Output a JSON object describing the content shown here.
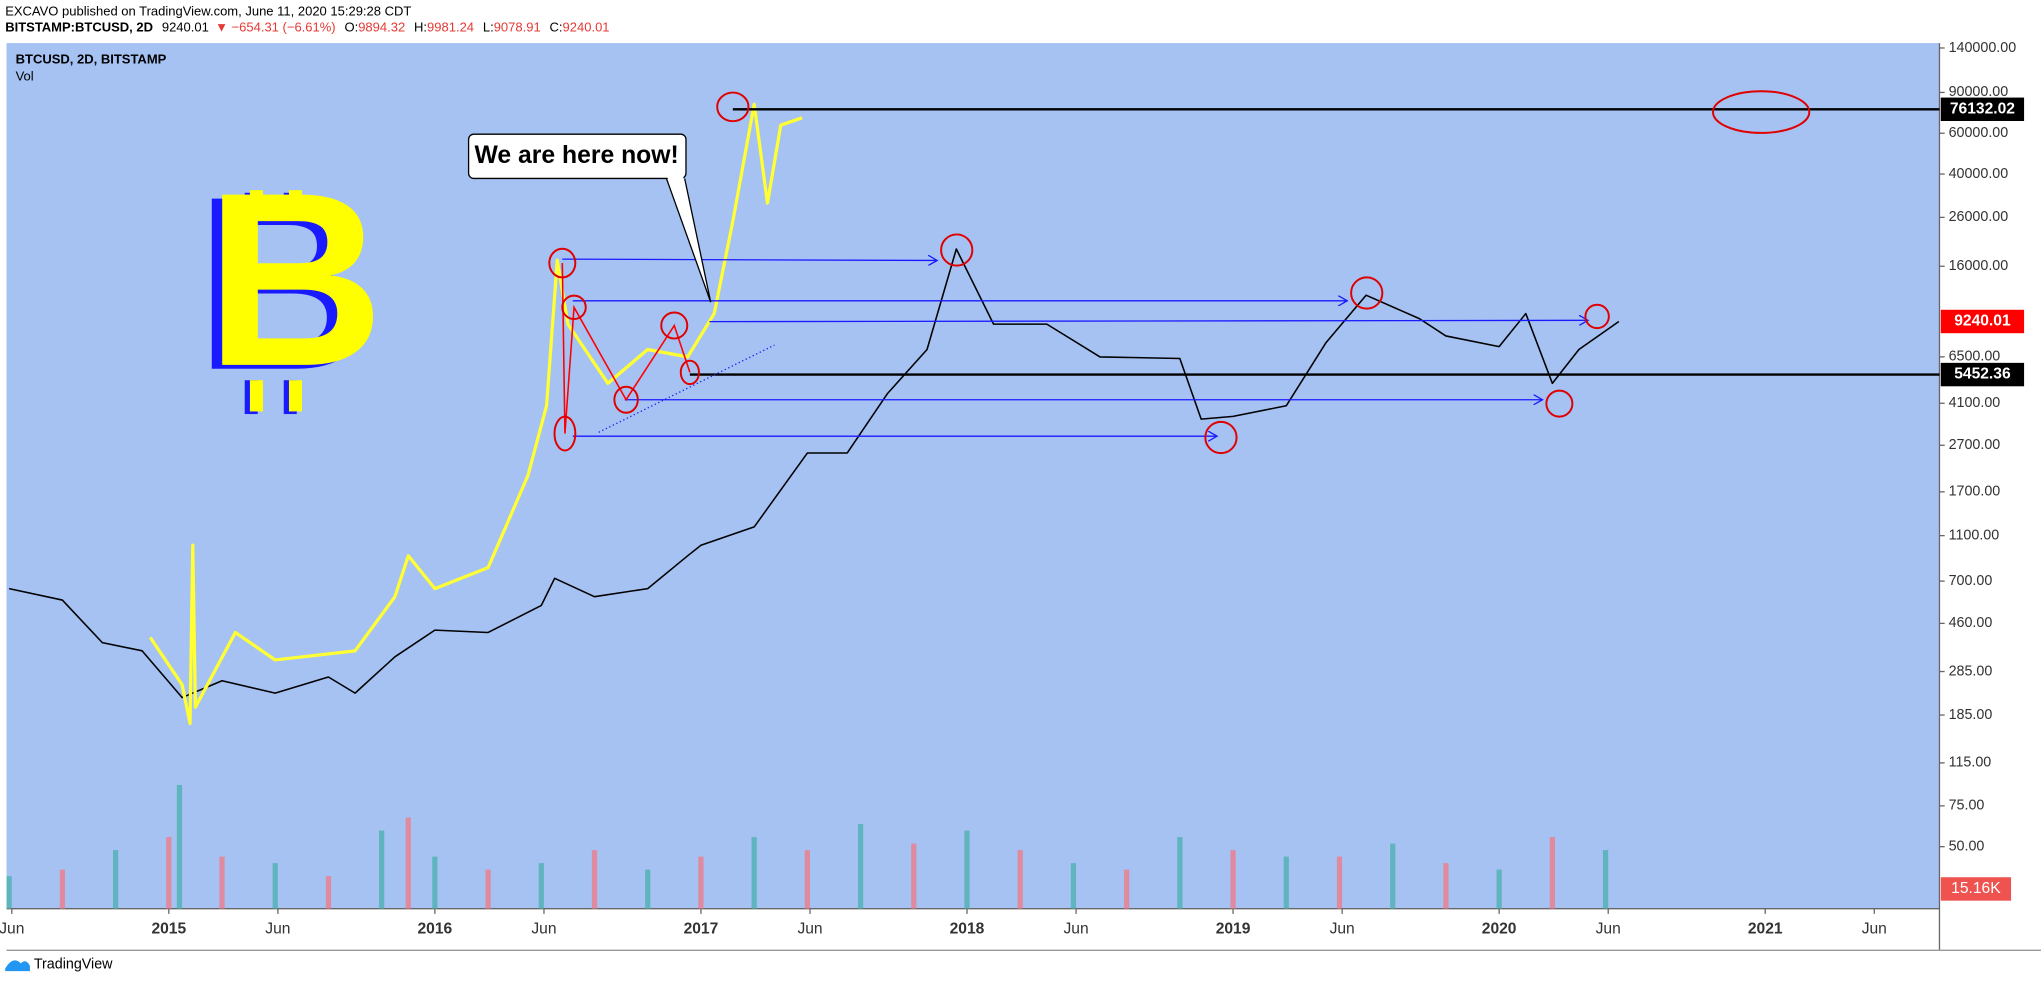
{
  "header": {
    "publisher": "EXCAVO published on TradingView.com, June 11, 2020 15:29:28 CDT",
    "symbol": "BITSTAMP:BTCUSD, 2D",
    "price": "9240.01",
    "change": "▼ −654.31 (−6.61%)",
    "ohlc": [
      {
        "key": "O:",
        "value": "9894.32"
      },
      {
        "key": "H:",
        "value": "9981.24"
      },
      {
        "key": "L:",
        "value": "9078.91"
      },
      {
        "key": "C:",
        "value": "9240.01"
      }
    ]
  },
  "chart_data": {
    "type": "line",
    "title": "BTCUSD, 2D, BITSTAMP",
    "subtitle": "Vol",
    "log_scale": true,
    "xlim": [
      2014.39,
      2021.655
    ],
    "xticks": [
      {
        "value": 2014.41,
        "label": "Jun"
      },
      2015,
      {
        "value": 2015.41,
        "label": "Jun"
      },
      2016,
      {
        "value": 2016.41,
        "label": "Jun"
      },
      2017,
      {
        "value": 2017.41,
        "label": "Jun"
      },
      2018,
      {
        "value": 2018.41,
        "label": "Jun"
      },
      2019,
      {
        "value": 2019.41,
        "label": "Jun"
      },
      2020,
      {
        "value": 2020.41,
        "label": "Jun"
      },
      2021,
      {
        "value": 2021.41,
        "label": "Jun"
      }
    ],
    "ylim": [
      27,
      147000
    ],
    "yticks": [
      {
        "value": 140000,
        "label": "140000.00"
      },
      {
        "value": 90000,
        "label": "90000.00"
      },
      {
        "value": 60000,
        "label": "60000.00"
      },
      {
        "value": 40000,
        "label": "40000.00"
      },
      {
        "value": 26000,
        "label": "26000.00"
      },
      {
        "value": 16000,
        "label": "16000.00"
      },
      {
        "value": 6500,
        "label": "6500.00"
      },
      {
        "value": 4100,
        "label": "4100.00"
      },
      {
        "value": 2700,
        "label": "2700.00"
      },
      {
        "value": 1700,
        "label": "1700.00"
      },
      {
        "value": 1100,
        "label": "1100.00"
      },
      {
        "value": 700,
        "label": "700.00"
      },
      {
        "value": 460,
        "label": "460.00"
      },
      {
        "value": 285,
        "label": "285.00"
      },
      {
        "value": 185,
        "label": "185.00"
      },
      {
        "value": 115,
        "label": "115.00"
      },
      {
        "value": 75,
        "label": "75.00"
      },
      {
        "value": 50,
        "label": "50.00"
      }
    ],
    "series": [
      {
        "color": "#000000",
        "x": [
          2014.4,
          2014.6,
          2014.75,
          2014.9,
          2015.05,
          2015.2,
          2015.4,
          2015.6,
          2015.7,
          2015.85,
          2016.0,
          2016.2,
          2016.4,
          2016.45,
          2016.6,
          2016.8,
          2016.95,
          2017.0,
          2017.2,
          2017.4,
          2017.55,
          2017.7,
          2017.85,
          2017.96,
          2018.1,
          2018.3,
          2018.5,
          2018.8,
          2018.88,
          2019.0,
          2019.2,
          2019.35,
          2019.5,
          2019.7,
          2019.8,
          2020.0,
          2020.1,
          2020.2,
          2020.3,
          2020.45
        ],
        "values": [
          650,
          580,
          380,
          350,
          220,
          260,
          230,
          270,
          230,
          330,
          430,
          420,
          550,
          720,
          600,
          650,
          900,
          1000,
          1200,
          2500,
          2500,
          4500,
          7000,
          19000,
          9000,
          9000,
          6500,
          6400,
          3500,
          3600,
          4000,
          7500,
          12000,
          9500,
          8000,
          7200,
          10000,
          5000,
          7000,
          9240
        ]
      },
      {
        "color": "#ffff33",
        "x": [
          2014.93,
          2015.05,
          2015.08,
          2015.09,
          2015.1,
          2015.25,
          2015.4,
          2015.7,
          2015.85,
          2015.9,
          2016.0,
          2016.2,
          2016.35,
          2016.42,
          2016.46,
          2016.5,
          2016.65,
          2016.8,
          2016.95,
          2017.05,
          2017.12,
          2017.2,
          2017.25,
          2017.3,
          2017.38
        ],
        "values": [
          400,
          250,
          170,
          1000,
          200,
          420,
          320,
          350,
          600,
          900,
          650,
          800,
          2000,
          4000,
          17000,
          9000,
          5000,
          7000,
          6500,
          10000,
          25000,
          80000,
          30000,
          65000,
          70000
        ]
      }
    ],
    "levels": [
      {
        "value": 76132.02,
        "label": "76132.02",
        "color": "#000000"
      },
      {
        "value": 5452.36,
        "label": "5452.36",
        "color": "#000000"
      },
      {
        "value": 9240.01,
        "label": "9240.01",
        "color": "#ff0000"
      }
    ],
    "volume": {
      "x": [
        2014.4,
        2014.6,
        2014.8,
        2015.0,
        2015.04,
        2015.2,
        2015.4,
        2015.6,
        2015.8,
        2015.9,
        2016.0,
        2016.2,
        2016.4,
        2016.6,
        2016.8,
        2017.0,
        2017.2,
        2017.4,
        2017.6,
        2017.8,
        2018.0,
        2018.2,
        2018.4,
        2018.6,
        2018.8,
        2019.0,
        2019.2,
        2019.4,
        2019.6,
        2019.8,
        2020.0,
        2020.2,
        2020.4
      ],
      "values": [
        25000,
        30000,
        45000,
        55000,
        95000,
        40000,
        35000,
        25000,
        60000,
        70000,
        40000,
        30000,
        35000,
        45000,
        30000,
        40000,
        55000,
        45000,
        65000,
        50000,
        60000,
        45000,
        35000,
        30000,
        55000,
        45000,
        40000,
        40000,
        50000,
        35000,
        30000,
        55000,
        45000
      ],
      "last": 15160,
      "last_label": "15.16K",
      "ylim": [
        0,
        100000
      ]
    },
    "annotations": [
      "We are here now!"
    ],
    "logo": "B"
  },
  "footer": "TradingView"
}
